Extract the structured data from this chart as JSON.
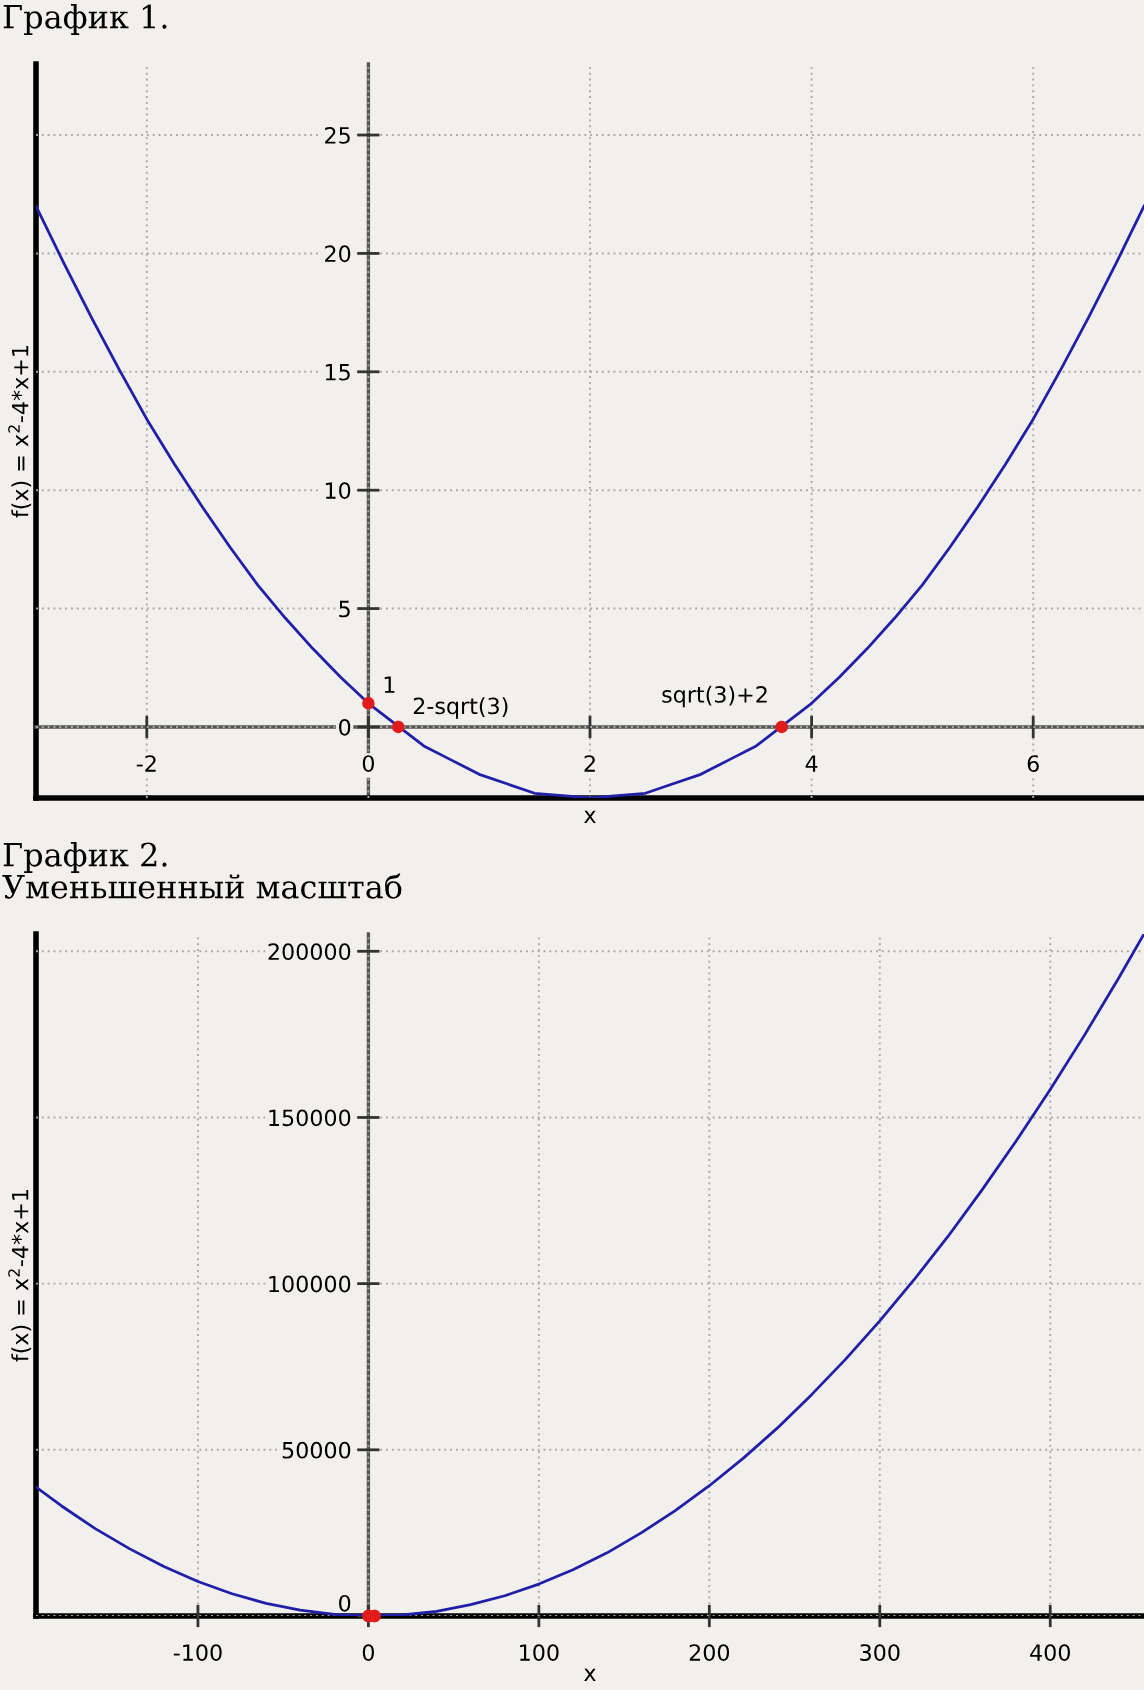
{
  "chart_data": [
    {
      "type": "line",
      "title": "График 1.",
      "xlabel": "x",
      "ylabel": "f(x) = x$^{2}$-4*x+1",
      "xlim": [
        -3,
        7
      ],
      "ylim": [
        -3,
        28
      ],
      "xticks": [
        -2,
        0,
        2,
        4,
        6
      ],
      "yticks": [
        0,
        5,
        10,
        15,
        20,
        25
      ],
      "grid": true,
      "series": [
        {
          "color": "#1f1fa8",
          "x": [
            -3,
            -2.75,
            -2.5,
            -2.25,
            -2,
            -1.75,
            -1.5,
            -1.25,
            -1,
            -0.75,
            -0.5,
            -0.25,
            0,
            0.25,
            0.5,
            0.75,
            1,
            1.25,
            1.5,
            1.75,
            2,
            2.25,
            2.5,
            2.75,
            3,
            3.25,
            3.5,
            3.75,
            4,
            4.25,
            4.5,
            4.75,
            5,
            5.25,
            5.5,
            5.75,
            6,
            6.25,
            6.5,
            6.75,
            7
          ],
          "values": [
            22,
            19.6,
            17.3,
            15.1,
            13,
            11.1,
            9.3,
            7.6,
            6,
            4.6,
            3.3,
            2.1,
            1,
            0.1,
            -0.8,
            -1.4,
            -2,
            -2.4,
            -2.8,
            -2.9,
            -3,
            -2.9,
            -2.8,
            -2.4,
            -2,
            -1.4,
            -0.8,
            0.1,
            1,
            2.1,
            3.3,
            4.6,
            6,
            7.6,
            9.3,
            11.1,
            13,
            15.1,
            17.3,
            19.6,
            22
          ]
        },
        {
          "type": "scatter",
          "color": "#e01b1b",
          "marker": "circle",
          "x": [
            0,
            0.27,
            3.73
          ],
          "values": [
            1,
            0,
            0
          ]
        }
      ],
      "annotations": [
        {
          "text": "2-sqrt(3)",
          "x": 0.27,
          "y": 0
        },
        {
          "text": "sqrt(3)+2",
          "x": 3.73,
          "y": 0
        },
        {
          "text": "1",
          "x": 0,
          "y": 1
        }
      ]
    },
    {
      "type": "line",
      "title": "График 2.",
      "subtitle": "Уменьшенный масштаб",
      "xlabel": "x",
      "ylabel": "f(x) = x$^{2}$-4*x+1",
      "xlim": [
        -195,
        455
      ],
      "ylim": [
        0,
        205200
      ],
      "xticks": [
        -100,
        0,
        100,
        200,
        300,
        400
      ],
      "yticks": [
        0,
        50000,
        100000,
        150000,
        200000
      ],
      "grid": true,
      "series": [
        {
          "color": "#1f1fa8",
          "x": [
            -195,
            -180,
            -160,
            -140,
            -120,
            -100,
            -80,
            -60,
            -40,
            -20,
            0,
            20,
            40,
            60,
            80,
            100,
            120,
            140,
            160,
            180,
            200,
            220,
            240,
            260,
            280,
            300,
            320,
            340,
            360,
            380,
            400,
            420,
            440,
            455
          ],
          "values": [
            38800,
            33100,
            26200,
            20200,
            14900,
            10400,
            6700,
            3800,
            1800,
            500,
            0,
            300,
            1400,
            3400,
            6100,
            9600,
            13900,
            19000,
            25000,
            31700,
            39200,
            47500,
            56600,
            66600,
            77300,
            88800,
            101100,
            114200,
            128200,
            142900,
            158400,
            174700,
            191800,
            205200
          ]
        },
        {
          "type": "scatter",
          "color": "#e01b1b",
          "marker": "circle",
          "x": [
            0,
            0.3,
            3.7
          ],
          "values": [
            0,
            0,
            0
          ]
        }
      ]
    }
  ]
}
